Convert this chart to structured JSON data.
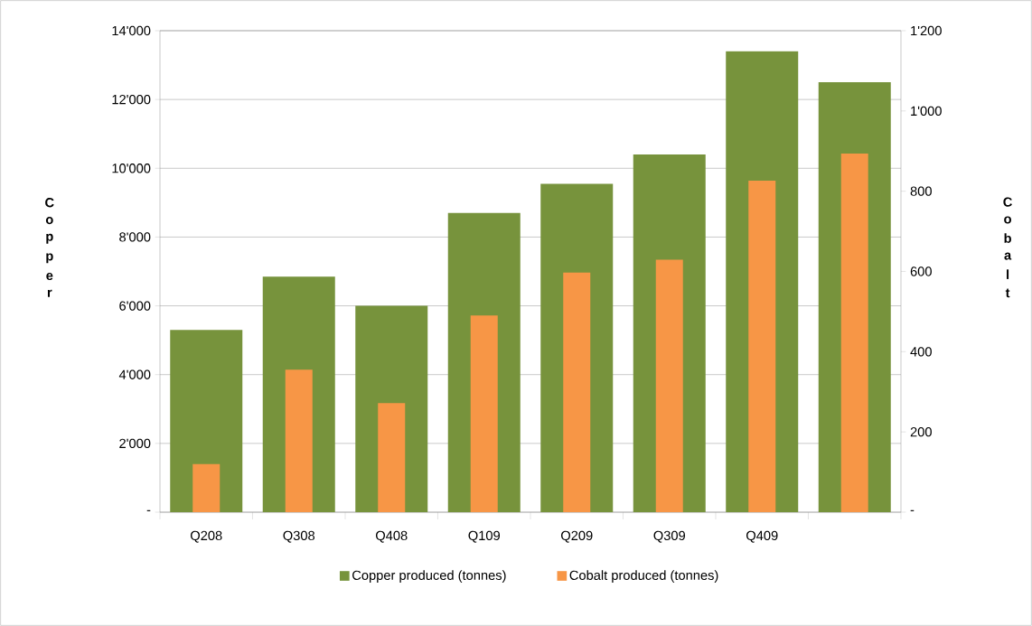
{
  "chart_data": {
    "type": "bar",
    "categories": [
      "Q208",
      "Q308",
      "Q408",
      "Q109",
      "Q209",
      "Q309",
      "Q409",
      null
    ],
    "ylabel": "Copper",
    "y2label": "Cobalt",
    "series": [
      {
        "name": "Copper produced (tonnes)",
        "color": "#77933c",
        "values": [
          5300,
          6850,
          6000,
          8700,
          9550,
          10400,
          13400,
          12500
        ]
      },
      {
        "name": "Cobalt produced (tonnes)",
        "color": "#f79646",
        "axis": "y2",
        "values": [
          120,
          355,
          272,
          490,
          597,
          629,
          826,
          894
        ]
      }
    ],
    "ylim": [
      0,
      14000
    ],
    "yticks": [
      {
        "value": 0,
        "label": "-"
      },
      {
        "value": 2000,
        "label": "2'000"
      },
      {
        "value": 4000,
        "label": "4'000"
      },
      {
        "value": 6000,
        "label": "6'000"
      },
      {
        "value": 8000,
        "label": "8'000"
      },
      {
        "value": 10000,
        "label": "10'000"
      },
      {
        "value": 12000,
        "label": "12'000"
      },
      {
        "value": 14000,
        "label": "14'000"
      }
    ],
    "y2lim": [
      0,
      1200
    ],
    "y2ticks": [
      {
        "value": 0,
        "label": "-"
      },
      200,
      400,
      600,
      800,
      {
        "value": 1000,
        "label": "1'000"
      },
      {
        "value": 1200,
        "label": "1'200"
      }
    ],
    "grid": "y",
    "legend": "bottom"
  }
}
